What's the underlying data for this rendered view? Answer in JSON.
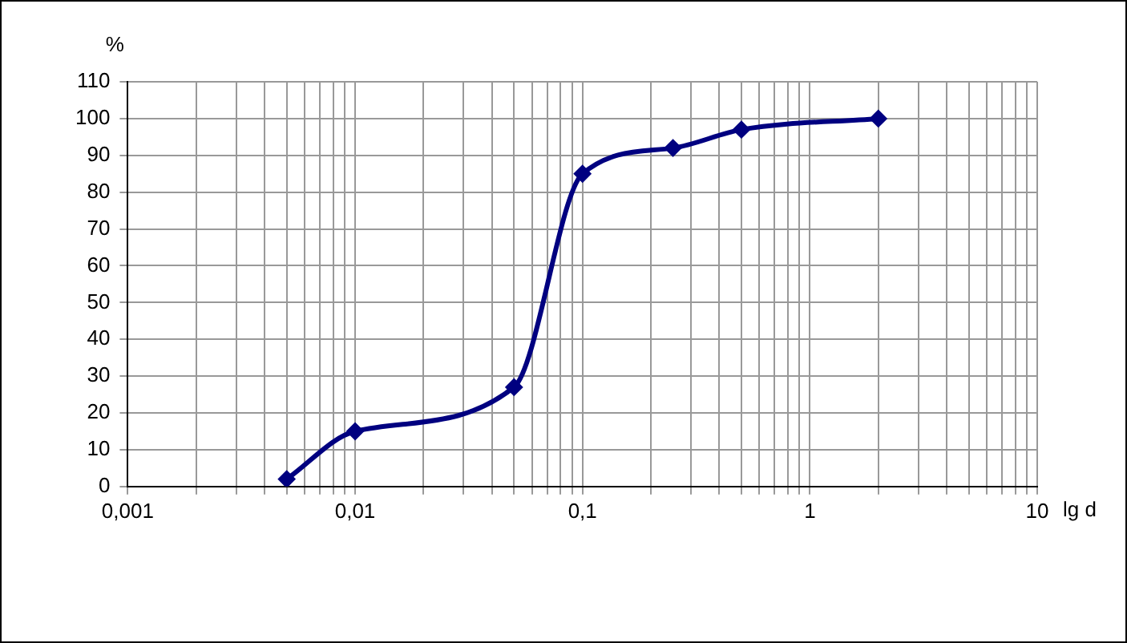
{
  "chart_data": {
    "type": "line",
    "xlabel": "lg d",
    "ylabel": "%",
    "x": [
      0.005,
      0.01,
      0.05,
      0.1,
      0.25,
      0.5,
      2
    ],
    "series": [
      {
        "color": "#000080",
        "values": [
          2,
          15,
          27,
          85,
          92,
          97,
          100
        ]
      }
    ],
    "log": "x",
    "xlim": [
      0.001,
      10
    ],
    "xticks": [
      {
        "value": 0.001,
        "label": "0,001"
      },
      {
        "value": 0.002,
        "label": null
      },
      {
        "value": 0.003,
        "label": null
      },
      {
        "value": 0.004,
        "label": null
      },
      {
        "value": 0.005,
        "label": null
      },
      {
        "value": 0.006,
        "label": null
      },
      {
        "value": 0.007,
        "label": null
      },
      {
        "value": 0.008,
        "label": null
      },
      {
        "value": 0.009,
        "label": null
      },
      {
        "value": 0.01,
        "label": "0,01"
      },
      {
        "value": 0.02,
        "label": null
      },
      {
        "value": 0.03,
        "label": null
      },
      {
        "value": 0.04,
        "label": null
      },
      {
        "value": 0.05,
        "label": null
      },
      {
        "value": 0.06,
        "label": null
      },
      {
        "value": 0.07,
        "label": null
      },
      {
        "value": 0.08,
        "label": null
      },
      {
        "value": 0.09,
        "label": null
      },
      {
        "value": 0.1,
        "label": "0,1"
      },
      {
        "value": 0.2,
        "label": null
      },
      {
        "value": 0.3,
        "label": null
      },
      {
        "value": 0.4,
        "label": null
      },
      {
        "value": 0.5,
        "label": null
      },
      {
        "value": 0.6,
        "label": null
      },
      {
        "value": 0.7,
        "label": null
      },
      {
        "value": 0.8,
        "label": null
      },
      {
        "value": 0.9,
        "label": null
      },
      {
        "value": 1,
        "label": "1"
      },
      {
        "value": 2,
        "label": null
      },
      {
        "value": 3,
        "label": null
      },
      {
        "value": 4,
        "label": null
      },
      {
        "value": 5,
        "label": null
      },
      {
        "value": 6,
        "label": null
      },
      {
        "value": 7,
        "label": null
      },
      {
        "value": 8,
        "label": null
      },
      {
        "value": 9,
        "label": null
      },
      {
        "value": 10,
        "label": "10"
      }
    ],
    "ylim": [
      0,
      110
    ],
    "yticks": [
      0,
      10,
      20,
      30,
      40,
      50,
      60,
      70,
      80,
      90,
      100,
      110
    ],
    "grid": true,
    "legend": false,
    "marker": "diamond",
    "line_style": "solid"
  }
}
